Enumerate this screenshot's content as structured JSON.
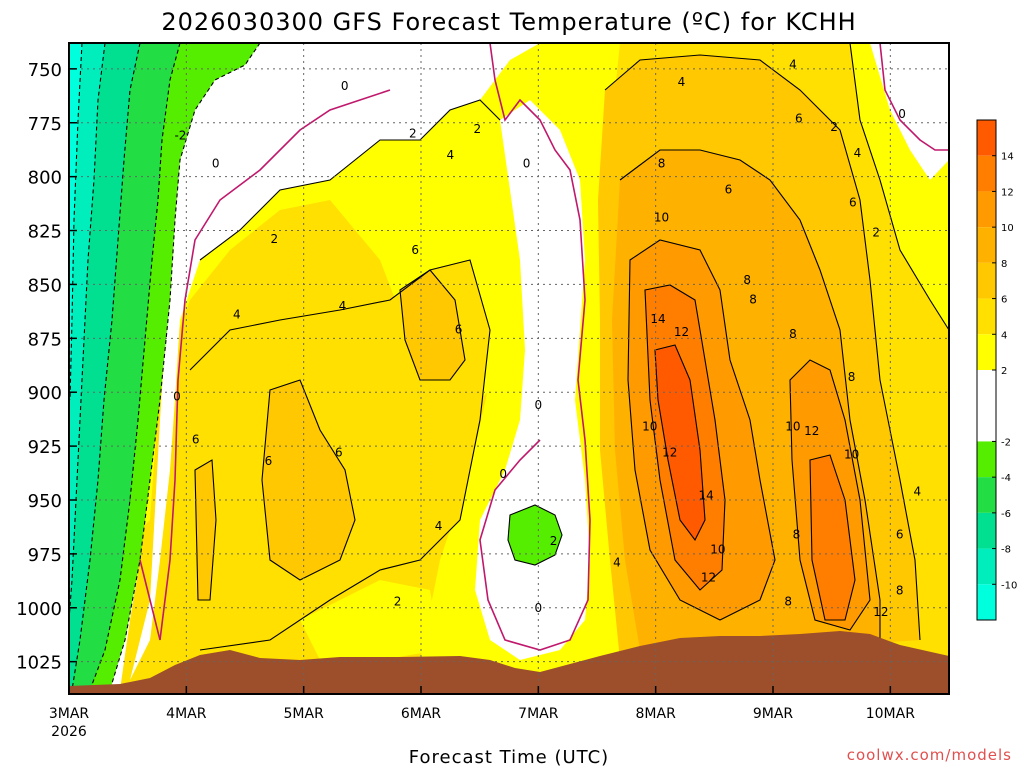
{
  "chart_data": {
    "type": "heatmap",
    "title": "2026030300 GFS Forecast Temperature (ºC) for KCHH",
    "xlabel": "Forecast Time (UTC)",
    "ylabel": "",
    "y_axis": {
      "ticks": [
        750,
        775,
        800,
        825,
        850,
        875,
        900,
        925,
        950,
        975,
        1000,
        1025
      ],
      "range": [
        1040,
        738
      ],
      "unit": "hPa"
    },
    "x_axis": {
      "ticks": [
        "3MAR",
        "4MAR",
        "5MAR",
        "6MAR",
        "7MAR",
        "8MAR",
        "9MAR",
        "10MAR"
      ],
      "first_tick_year": "2026",
      "range_days": [
        0,
        7.5
      ]
    },
    "colorbar": {
      "ticks": [
        14,
        12,
        10,
        8,
        6,
        4,
        2,
        -2,
        -4,
        -6,
        -8,
        -10
      ],
      "bins": [
        {
          "from": 14,
          "to": 16,
          "color": "#ff5a00"
        },
        {
          "from": 12,
          "to": 14,
          "color": "#ff7e00"
        },
        {
          "from": 10,
          "to": 12,
          "color": "#ff9a00"
        },
        {
          "from": 8,
          "to": 10,
          "color": "#ffb100"
        },
        {
          "from": 6,
          "to": 8,
          "color": "#ffc800"
        },
        {
          "from": 4,
          "to": 6,
          "color": "#ffe000"
        },
        {
          "from": 2,
          "to": 4,
          "color": "#ffff00"
        },
        {
          "from": -2,
          "to": 2,
          "color": "#ffffff"
        },
        {
          "from": -4,
          "to": -2,
          "color": "#55ee00"
        },
        {
          "from": -6,
          "to": -4,
          "color": "#22dd44"
        },
        {
          "from": -8,
          "to": -6,
          "color": "#00e090"
        },
        {
          "from": -10,
          "to": -8,
          "color": "#00eebb"
        },
        {
          "from": -12,
          "to": -10,
          "color": "#00ffdd"
        }
      ]
    },
    "terrain_color": "#9c4f2a",
    "zero_line_color": "#c0186c",
    "contour_labels": [
      {
        "value": "0",
        "day": 2.35,
        "p": 758
      },
      {
        "value": "0",
        "day": 1.25,
        "p": 794
      },
      {
        "value": "0",
        "day": 0.92,
        "p": 902
      },
      {
        "value": "0",
        "day": 3.9,
        "p": 794
      },
      {
        "value": "0",
        "day": 3.7,
        "p": 938
      },
      {
        "value": "0",
        "day": 4.0,
        "p": 906
      },
      {
        "value": "0",
        "day": 4.0,
        "p": 1000
      },
      {
        "value": "0",
        "day": 7.1,
        "p": 771
      },
      {
        "value": "-2",
        "day": 0.95,
        "p": 781
      },
      {
        "value": "2",
        "day": 1.75,
        "p": 829
      },
      {
        "value": "2",
        "day": 2.93,
        "p": 780
      },
      {
        "value": "2",
        "day": 3.48,
        "p": 778
      },
      {
        "value": "2",
        "day": 2.8,
        "p": 997
      },
      {
        "value": "2",
        "day": 4.13,
        "p": 969
      },
      {
        "value": "2",
        "day": 6.52,
        "p": 777
      },
      {
        "value": "2",
        "day": 6.88,
        "p": 826
      },
      {
        "value": "4",
        "day": 3.25,
        "p": 790
      },
      {
        "value": "4",
        "day": 2.33,
        "p": 860
      },
      {
        "value": "4",
        "day": 1.43,
        "p": 864
      },
      {
        "value": "4",
        "day": 3.15,
        "p": 962
      },
      {
        "value": "4",
        "day": 4.67,
        "p": 979
      },
      {
        "value": "4",
        "day": 5.22,
        "p": 756
      },
      {
        "value": "4",
        "day": 6.17,
        "p": 748
      },
      {
        "value": "4",
        "day": 6.72,
        "p": 789
      },
      {
        "value": "4",
        "day": 7.23,
        "p": 946
      },
      {
        "value": "6",
        "day": 2.95,
        "p": 834
      },
      {
        "value": "6",
        "day": 3.32,
        "p": 871
      },
      {
        "value": "6",
        "day": 2.3,
        "p": 928
      },
      {
        "value": "6",
        "day": 1.7,
        "p": 932
      },
      {
        "value": "6",
        "day": 1.08,
        "p": 922
      },
      {
        "value": "6",
        "day": 6.22,
        "p": 773
      },
      {
        "value": "6",
        "day": 5.62,
        "p": 806
      },
      {
        "value": "6",
        "day": 6.68,
        "p": 812
      },
      {
        "value": "6",
        "day": 7.08,
        "p": 966
      },
      {
        "value": "8",
        "day": 5.05,
        "p": 794
      },
      {
        "value": "8",
        "day": 5.78,
        "p": 848
      },
      {
        "value": "8",
        "day": 5.83,
        "p": 857
      },
      {
        "value": "8",
        "day": 6.17,
        "p": 873
      },
      {
        "value": "8",
        "day": 6.67,
        "p": 893
      },
      {
        "value": "8",
        "day": 6.2,
        "p": 966
      },
      {
        "value": "8",
        "day": 6.13,
        "p": 997
      },
      {
        "value": "8",
        "day": 7.08,
        "p": 992
      },
      {
        "value": "10",
        "day": 5.05,
        "p": 819
      },
      {
        "value": "10",
        "day": 4.95,
        "p": 916
      },
      {
        "value": "10",
        "day": 6.17,
        "p": 916
      },
      {
        "value": "10",
        "day": 6.67,
        "p": 929
      },
      {
        "value": "10",
        "day": 5.53,
        "p": 973
      },
      {
        "value": "12",
        "day": 5.22,
        "p": 872
      },
      {
        "value": "12",
        "day": 5.12,
        "p": 928
      },
      {
        "value": "12",
        "day": 6.33,
        "p": 918
      },
      {
        "value": "12",
        "day": 5.45,
        "p": 986
      },
      {
        "value": "12",
        "day": 6.92,
        "p": 1002
      },
      {
        "value": "14",
        "day": 5.02,
        "p": 866
      },
      {
        "value": "14",
        "day": 5.43,
        "p": 948
      }
    ]
  },
  "credit": "coolwx.com/models"
}
